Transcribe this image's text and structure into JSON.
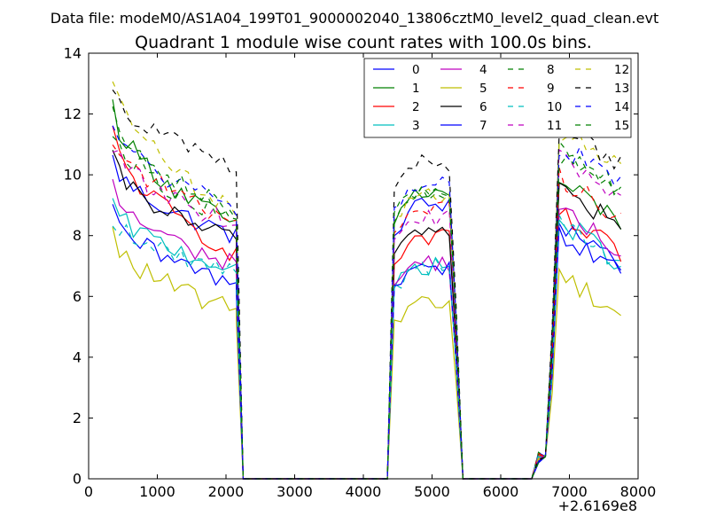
{
  "chart_data": {
    "type": "line",
    "suptitle": "Data file: modeM0/AS1A04_199T01_9000002040_13806cztM0_level2_quad_clean.evt",
    "title": "Quadrant 1 module wise count rates with 100.0s bins.",
    "xlabel": "",
    "ylabel": "",
    "x_offset_label": "+2.6169e8",
    "xlim": [
      0,
      8000
    ],
    "ylim": [
      0,
      14
    ],
    "xticks": [
      0,
      1000,
      2000,
      3000,
      4000,
      5000,
      6000,
      7000,
      8000
    ],
    "xtick_labels": [
      "0",
      "1000",
      "2000",
      "3000",
      "4000",
      "5000",
      "6000",
      "7000",
      "8000"
    ],
    "yticks": [
      0,
      2,
      4,
      6,
      8,
      10,
      12,
      14
    ],
    "ytick_labels": [
      "0",
      "2",
      "4",
      "6",
      "8",
      "10",
      "12",
      "14"
    ],
    "legend_position": "top-right",
    "legend_columns": 4,
    "segments": [
      {
        "start": 350,
        "end": 2150,
        "step": 100
      },
      {
        "start": 4450,
        "end": 5250,
        "step": 100
      },
      {
        "start": 6850,
        "end": 7750,
        "step": 100
      }
    ],
    "gaps": [
      {
        "from": 2150,
        "to": 2250
      },
      {
        "from": 2250,
        "to": 4350
      },
      {
        "from": 4350,
        "to": 4450
      },
      {
        "from": 5250,
        "to": 5450
      },
      {
        "from": 5450,
        "to": 6450
      },
      {
        "from": 6450,
        "to": 6650
      },
      {
        "from": 6650,
        "to": 6750
      },
      {
        "from": 6750,
        "to": 6850
      }
    ],
    "series": [
      {
        "name": "0",
        "color": "#0000ff",
        "dash": "solid",
        "levels": [
          10.5,
          8.0,
          9.0,
          8.0
        ]
      },
      {
        "name": "1",
        "color": "#008000",
        "dash": "solid",
        "levels": [
          12.3,
          8.3,
          9.4,
          9.3
        ]
      },
      {
        "name": "2",
        "color": "#ff0000",
        "dash": "solid",
        "levels": [
          11.4,
          7.4,
          7.9,
          8.2
        ]
      },
      {
        "name": "3",
        "color": "#00bfbf",
        "dash": "solid",
        "levels": [
          9.0,
          6.9,
          7.0,
          8.0
        ]
      },
      {
        "name": "4",
        "color": "#bf00bf",
        "dash": "solid",
        "levels": [
          9.6,
          7.0,
          7.1,
          8.3
        ]
      },
      {
        "name": "5",
        "color": "#bfbf00",
        "dash": "solid",
        "levels": [
          8.0,
          5.5,
          5.8,
          6.3
        ]
      },
      {
        "name": "6",
        "color": "#000000",
        "dash": "solid",
        "levels": [
          10.5,
          7.8,
          8.2,
          9.1
        ]
      },
      {
        "name": "7",
        "color": "#0000ff",
        "dash": "solid",
        "levels": [
          8.7,
          6.4,
          7.0,
          7.6
        ]
      },
      {
        "name": "8",
        "color": "#008000",
        "dash": "dashed",
        "levels": [
          11.6,
          8.5,
          9.3,
          10.4
        ]
      },
      {
        "name": "9",
        "color": "#ff0000",
        "dash": "dashed",
        "levels": [
          11.3,
          8.5,
          8.9,
          9.5
        ]
      },
      {
        "name": "10",
        "color": "#00bfbf",
        "dash": "dashed",
        "levels": [
          8.6,
          6.8,
          7.0,
          7.9
        ]
      },
      {
        "name": "11",
        "color": "#bf00bf",
        "dash": "dashed",
        "levels": [
          11.0,
          8.4,
          8.6,
          10.0
        ]
      },
      {
        "name": "12",
        "color": "#bfbf00",
        "dash": "dashed",
        "levels": [
          13.3,
          8.7,
          9.4,
          11.0
        ]
      },
      {
        "name": "13",
        "color": "#000000",
        "dash": "dashed",
        "levels": [
          13.0,
          10.2,
          10.4,
          11.2
        ]
      },
      {
        "name": "14",
        "color": "#0000ff",
        "dash": "dashed",
        "levels": [
          11.8,
          8.8,
          9.7,
          10.5
        ]
      },
      {
        "name": "15",
        "color": "#008000",
        "dash": "dashed",
        "levels": [
          12.4,
          8.7,
          9.5,
          10.1
        ]
      }
    ]
  }
}
